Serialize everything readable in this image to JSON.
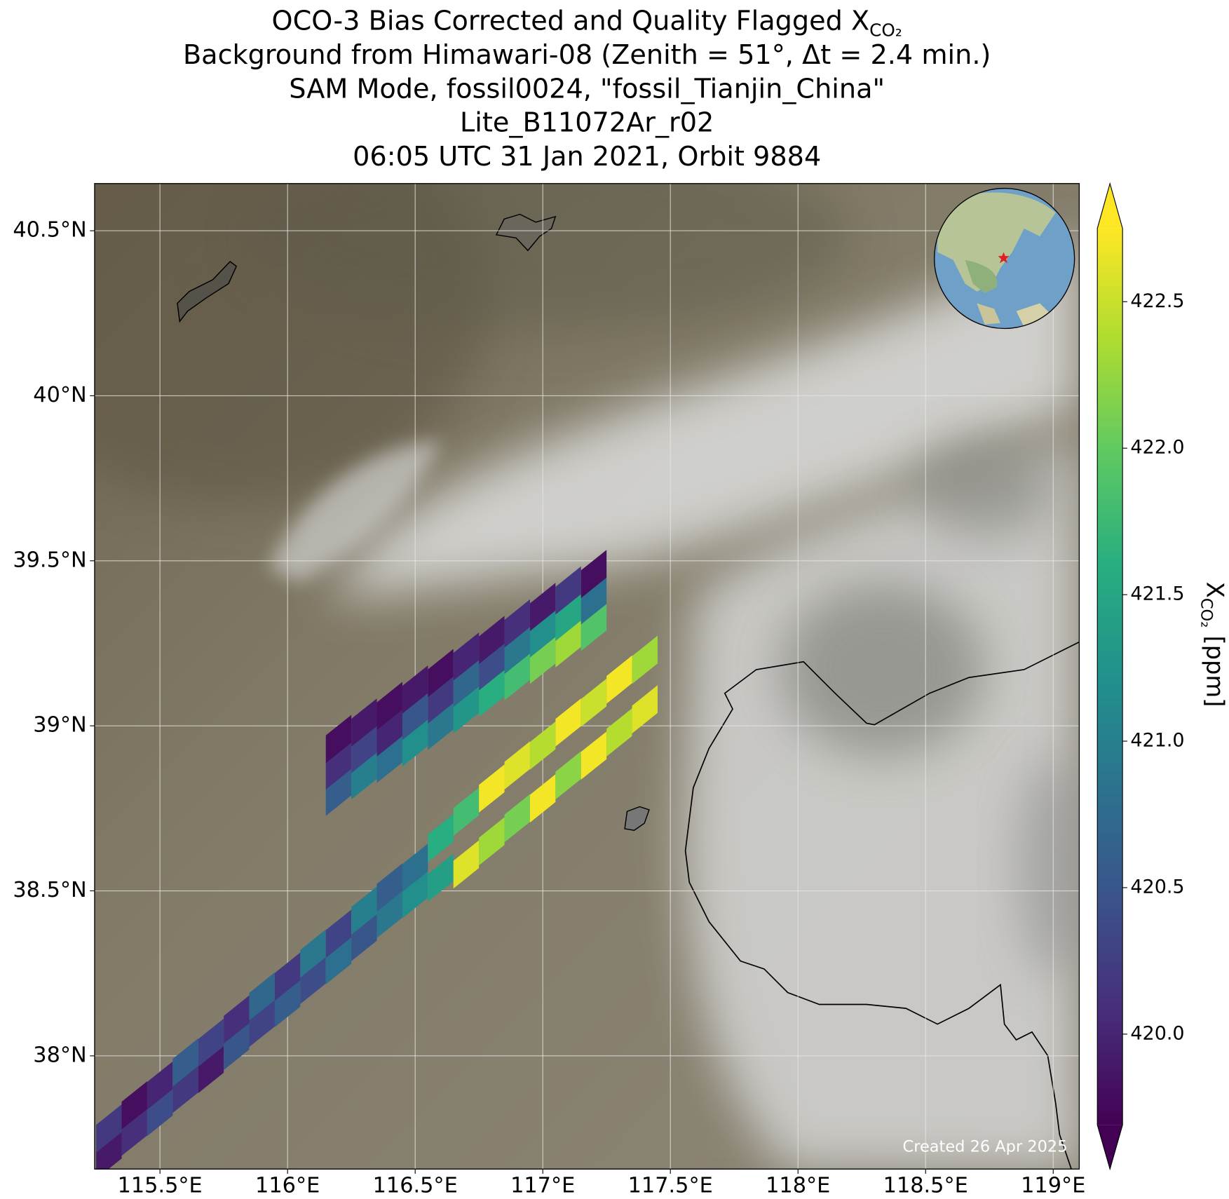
{
  "chart_data": {
    "type": "swath_map",
    "title": [
      "OCO-3 Bias Corrected and Quality Flagged X",
      "Background from Himawari-08 (Zenith = 51°, Δt =  2.4 min.)",
      "SAM Mode, fossil0024, \"fossil_Tianjin_China\"",
      "Lite_B11072Ar_r02",
      "06:05 UTC 31 Jan 2021, Orbit 9884"
    ],
    "title_subscript": "CO₂",
    "colorbar_label": "X",
    "colorbar_label_subscript": "CO₂",
    "colorbar_label_unit": "[ppm]",
    "credit": "Created 26 Apr 2025",
    "colormap": "viridis",
    "grid": true,
    "xlim": [
      115.244,
      119.102
    ],
    "ylim": [
      37.657,
      40.643
    ],
    "clim": [
      419.69,
      422.75
    ],
    "xticks": [
      {
        "value": 115.5,
        "label": "115.5°E"
      },
      {
        "value": 116,
        "label": "116°E"
      },
      {
        "value": 116.5,
        "label": "116.5°E"
      },
      {
        "value": 117,
        "label": "117°E"
      },
      {
        "value": 117.5,
        "label": "117.5°E"
      },
      {
        "value": 118,
        "label": "118°E"
      },
      {
        "value": 118.5,
        "label": "118.5°E"
      },
      {
        "value": 119,
        "label": "119°E"
      }
    ],
    "yticks": [
      {
        "value": 38,
        "label": "38°N"
      },
      {
        "value": 38.5,
        "label": "38.5°N"
      },
      {
        "value": 39,
        "label": "39°N"
      },
      {
        "value": 39.5,
        "label": "39.5°N"
      },
      {
        "value": 40,
        "label": "40°N"
      },
      {
        "value": 40.5,
        "label": "40.5°N"
      }
    ],
    "cticks": [
      {
        "value": 420,
        "label": "420.0"
      },
      420.5,
      {
        "value": 421,
        "label": "421.0"
      },
      421.5,
      {
        "value": 422,
        "label": "422.0"
      },
      422.5
    ],
    "x": [
      115.3,
      115.3,
      115.4,
      115.4,
      115.5,
      115.5,
      115.6,
      115.6,
      115.7,
      115.7,
      115.8,
      115.8,
      115.9,
      115.9,
      116.0,
      116.0,
      116.1,
      116.1,
      116.2,
      116.2,
      116.3,
      116.3,
      116.4,
      116.4,
      116.5,
      116.5,
      116.6,
      116.6,
      116.7,
      116.7,
      116.8,
      116.8,
      116.9,
      116.9,
      117.0,
      117.0,
      117.1,
      117.1,
      117.2,
      117.2,
      117.3,
      117.3,
      117.4,
      117.4,
      116.2,
      116.2,
      116.2,
      116.3,
      116.3,
      116.3,
      116.4,
      116.4,
      116.4,
      116.5,
      116.5,
      116.5,
      116.6,
      116.6,
      116.6,
      116.7,
      116.7,
      116.7,
      116.8,
      116.8,
      116.8,
      116.9,
      116.9,
      116.9,
      117.0,
      117.0,
      117.0,
      117.1,
      117.1,
      117.1,
      117.2,
      117.2,
      117.2
    ],
    "y": [
      37.7,
      37.78,
      37.77,
      37.85,
      37.83,
      37.91,
      37.9,
      37.98,
      37.96,
      38.04,
      38.03,
      38.11,
      38.1,
      38.18,
      38.16,
      38.24,
      38.23,
      38.31,
      38.29,
      38.37,
      38.36,
      38.44,
      38.43,
      38.51,
      38.49,
      38.57,
      38.54,
      38.66,
      38.58,
      38.74,
      38.65,
      38.81,
      38.72,
      38.88,
      38.78,
      38.94,
      38.85,
      39.01,
      38.91,
      39.07,
      38.98,
      39.14,
      39.05,
      39.2,
      38.8,
      38.88,
      38.96,
      38.85,
      38.93,
      39.01,
      38.9,
      38.98,
      39.06,
      38.95,
      39.03,
      39.11,
      39.0,
      39.08,
      39.16,
      39.05,
      39.13,
      39.21,
      39.1,
      39.18,
      39.26,
      39.15,
      39.23,
      39.31,
      39.2,
      39.28,
      39.36,
      39.25,
      39.33,
      39.41,
      39.3,
      39.38,
      39.46
    ],
    "values": [
      419.9,
      420.2,
      420.1,
      419.8,
      420.4,
      420.0,
      420.2,
      420.6,
      419.9,
      420.3,
      420.5,
      420.1,
      420.3,
      420.7,
      420.6,
      420.2,
      420.4,
      420.9,
      420.8,
      420.3,
      420.5,
      421.0,
      420.9,
      420.6,
      421.2,
      420.8,
      421.4,
      421.6,
      422.6,
      421.8,
      422.3,
      422.7,
      422.1,
      422.6,
      422.7,
      422.4,
      422.2,
      422.7,
      422.7,
      422.5,
      422.4,
      422.7,
      422.6,
      422.3,
      420.6,
      420.1,
      419.8,
      421.0,
      420.3,
      419.9,
      420.8,
      420.0,
      419.8,
      421.2,
      420.5,
      419.9,
      420.9,
      420.2,
      419.8,
      421.3,
      420.7,
      420.0,
      421.6,
      420.4,
      419.9,
      421.8,
      420.9,
      420.1,
      422.1,
      421.2,
      419.9,
      422.3,
      421.5,
      420.2,
      421.9,
      420.8,
      419.8
    ]
  }
}
